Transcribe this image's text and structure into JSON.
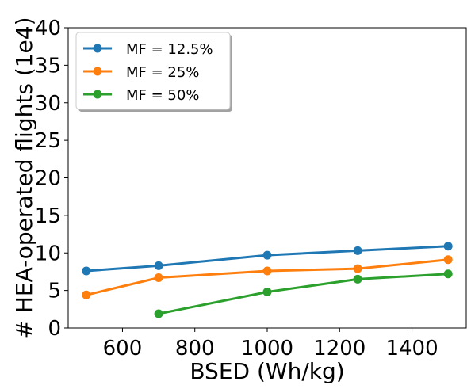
{
  "chart_data": {
    "type": "line",
    "xlabel": "BSED (Wh/kg)",
    "ylabel": "# HEA-operated flights (1e4)",
    "xlim": [
      450,
      1550
    ],
    "ylim": [
      0,
      40
    ],
    "xticks": [
      600,
      800,
      1000,
      1200,
      1400
    ],
    "yticks": [
      0,
      5,
      10,
      15,
      20,
      25,
      30,
      35,
      40
    ],
    "grid": false,
    "legend_position": "top-left",
    "series": [
      {
        "name": "MF = 12.5%",
        "color": "#1f77b4",
        "x": [
          500,
          700,
          1000,
          1250,
          1500
        ],
        "y": [
          7.6,
          8.3,
          9.7,
          10.3,
          10.9
        ]
      },
      {
        "name": "MF = 25%",
        "color": "#ff7f0e",
        "x": [
          500,
          700,
          1000,
          1250,
          1500
        ],
        "y": [
          4.4,
          6.7,
          7.6,
          7.9,
          9.1
        ]
      },
      {
        "name": "MF = 50%",
        "color": "#2ca02c",
        "x": [
          700,
          1000,
          1250,
          1500
        ],
        "y": [
          1.9,
          4.8,
          6.5,
          7.2
        ]
      }
    ]
  }
}
